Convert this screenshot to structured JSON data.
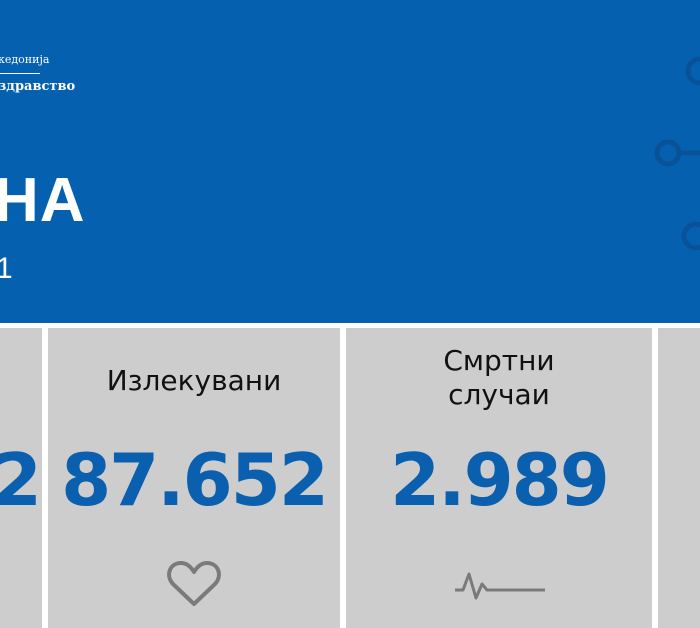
{
  "header": {
    "logo_top": "кедонија",
    "logo_bottom": "здравство",
    "title": "НА",
    "subtitle": "1",
    "background_color": "#0561b0"
  },
  "cards": [
    {
      "label": "",
      "value": "2"
    },
    {
      "label": "Излекувани",
      "value": "87.652",
      "icon": "heart-icon"
    },
    {
      "label_line1": "Смртни",
      "label_line2": "случаи",
      "value": "2.989",
      "icon": "heartbeat-line-icon"
    },
    {
      "label": "",
      "value": ""
    }
  ],
  "colors": {
    "card_bg": "#cdcdcd",
    "value": "#0a5fae",
    "icon": "#7a7a7a"
  }
}
